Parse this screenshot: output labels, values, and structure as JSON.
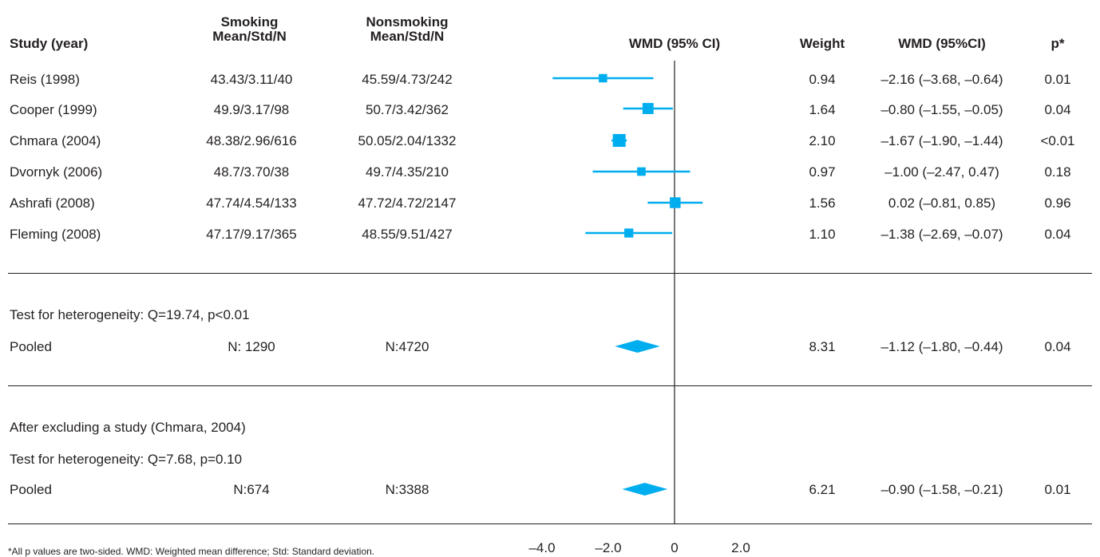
{
  "headers": {
    "study": "Study (year)",
    "smoking_line1": "Smoking",
    "smoking_line2": "Mean/Std/N",
    "nonsmoking_line1": "Nonsmoking",
    "nonsmoking_line2": "Mean/Std/N",
    "plot": "WMD (95% CI)",
    "weight": "Weight",
    "wmd": "WMD (95%CI)",
    "p": "p*"
  },
  "studies": [
    {
      "name": "Reis (1998)",
      "smoking": "43.43/3.11/40",
      "nonsmoking": "45.59/4.73/242",
      "weight": "0.94",
      "wmd": "–2.16 (–3.68, –0.64)",
      "p": "0.01"
    },
    {
      "name": "Cooper (1999)",
      "smoking": "49.9/3.17/98",
      "nonsmoking": "50.7/3.42/362",
      "weight": "1.64",
      "wmd": "–0.80 (–1.55, –0.05)",
      "p": "0.04"
    },
    {
      "name": "Chmara (2004)",
      "smoking": "48.38/2.96/616",
      "nonsmoking": "50.05/2.04/1332",
      "weight": "2.10",
      "wmd": "–1.67 (–1.90, –1.44)",
      "p": "<0.01"
    },
    {
      "name": "Dvornyk (2006)",
      "smoking": "48.7/3.70/38",
      "nonsmoking": "49.7/4.35/210",
      "weight": "0.97",
      "wmd": "–1.00 (–2.47, 0.47)",
      "p": "0.18"
    },
    {
      "name": "Ashrafi (2008)",
      "smoking": "47.74/4.54/133",
      "nonsmoking": "47.72/4.72/2147",
      "weight": "1.56",
      "wmd": "0.02 (–0.81, 0.85)",
      "p": "0.96"
    },
    {
      "name": "Fleming (2008)",
      "smoking": "47.17/9.17/365",
      "nonsmoking": "48.55/9.51/427",
      "weight": "1.10",
      "wmd": "–1.38 (–2.69, –0.07)",
      "p": "0.04"
    }
  ],
  "section1": {
    "heterogeneity": "Test for heterogeneity: Q=19.74, p<0.01",
    "pooled_label": "Pooled",
    "smoking_n": "N: 1290",
    "nonsmoking_n": "N:4720",
    "weight": "8.31",
    "wmd": "–1.12 (–1.80, –0.44)",
    "p": "0.04"
  },
  "section2": {
    "exclusion_note": "After excluding a study (Chmara, 2004)",
    "heterogeneity": "Test for heterogeneity: Q=7.68, p=0.10",
    "pooled_label": "Pooled",
    "smoking_n": "N:674",
    "nonsmoking_n": "N:3388",
    "weight": "6.21",
    "wmd": "–0.90 (–1.58, –0.21)",
    "p": "0.01"
  },
  "footnote": "*All p values are two-sided. WMD: Weighted mean difference; Std: Standard deviation.",
  "colors": {
    "marker": "#00aeef",
    "text": "#231f20"
  },
  "chart_data": {
    "type": "forest",
    "x_axis": {
      "range": [
        -4.0,
        2.0
      ],
      "ticks": [
        -4.0,
        -2.0,
        0,
        2.0
      ],
      "tick_labels": [
        "–4.0",
        "–2.0",
        "0",
        "2.0"
      ],
      "reference_line": 0
    },
    "studies": [
      {
        "name": "Reis (1998)",
        "estimate": -2.16,
        "lower": -3.68,
        "upper": -0.64,
        "weight": 0.94
      },
      {
        "name": "Cooper (1999)",
        "estimate": -0.8,
        "lower": -1.55,
        "upper": -0.05,
        "weight": 1.64
      },
      {
        "name": "Chmara (2004)",
        "estimate": -1.67,
        "lower": -1.9,
        "upper": -1.44,
        "weight": 2.1
      },
      {
        "name": "Dvornyk (2006)",
        "estimate": -1.0,
        "lower": -2.47,
        "upper": 0.47,
        "weight": 0.97
      },
      {
        "name": "Ashrafi (2008)",
        "estimate": 0.02,
        "lower": -0.81,
        "upper": 0.85,
        "weight": 1.56
      },
      {
        "name": "Fleming (2008)",
        "estimate": -1.38,
        "lower": -2.69,
        "upper": -0.07,
        "weight": 1.1
      }
    ],
    "pooled": [
      {
        "label": "Pooled",
        "estimate": -1.12,
        "lower": -1.8,
        "upper": -0.44
      },
      {
        "label": "Pooled",
        "estimate": -0.9,
        "lower": -1.58,
        "upper": -0.21
      }
    ]
  }
}
